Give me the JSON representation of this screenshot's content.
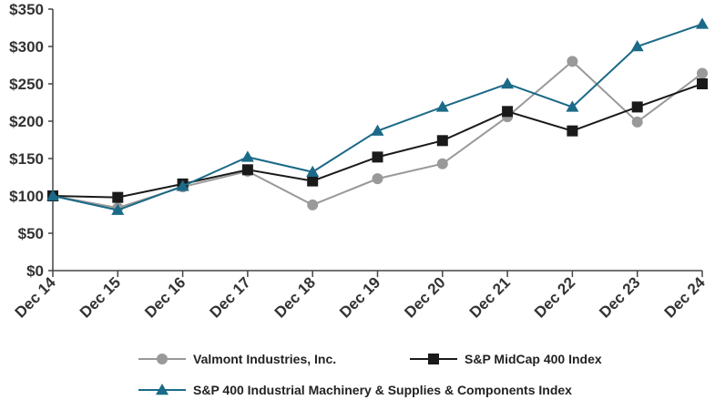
{
  "chart_data": {
    "type": "line",
    "title": "",
    "xlabel": "",
    "ylabel": "",
    "categories": [
      "Dec 14",
      "Dec 15",
      "Dec 16",
      "Dec 17",
      "Dec 18",
      "Dec 19",
      "Dec 20",
      "Dec 21",
      "Dec 22",
      "Dec 23",
      "Dec 24"
    ],
    "ylim": [
      0,
      350
    ],
    "yticks": [
      0,
      50,
      100,
      150,
      200,
      250,
      300,
      350
    ],
    "ytick_labels": [
      "$0",
      "$50",
      "$100",
      "$150",
      "$200",
      "$250",
      "$300",
      "$350"
    ],
    "grid": false,
    "legend_position": "bottom",
    "series": [
      {
        "name": "Valmont Industries, Inc.",
        "color": "#999999",
        "marker": "circle",
        "values": [
          100,
          84,
          112,
          133,
          88,
          123,
          143,
          206,
          280,
          199,
          264
        ]
      },
      {
        "name": "S&P MidCap 400 Index",
        "color": "#1a1a1a",
        "marker": "square",
        "values": [
          100,
          98,
          116,
          135,
          120,
          152,
          174,
          213,
          187,
          219,
          250
        ]
      },
      {
        "name": "S&P 400 Industrial Machinery & Supplies & Components Index",
        "color": "#1b6a87",
        "marker": "triangle",
        "values": [
          100,
          81,
          113,
          152,
          132,
          187,
          219,
          250,
          219,
          300,
          330
        ]
      }
    ]
  }
}
